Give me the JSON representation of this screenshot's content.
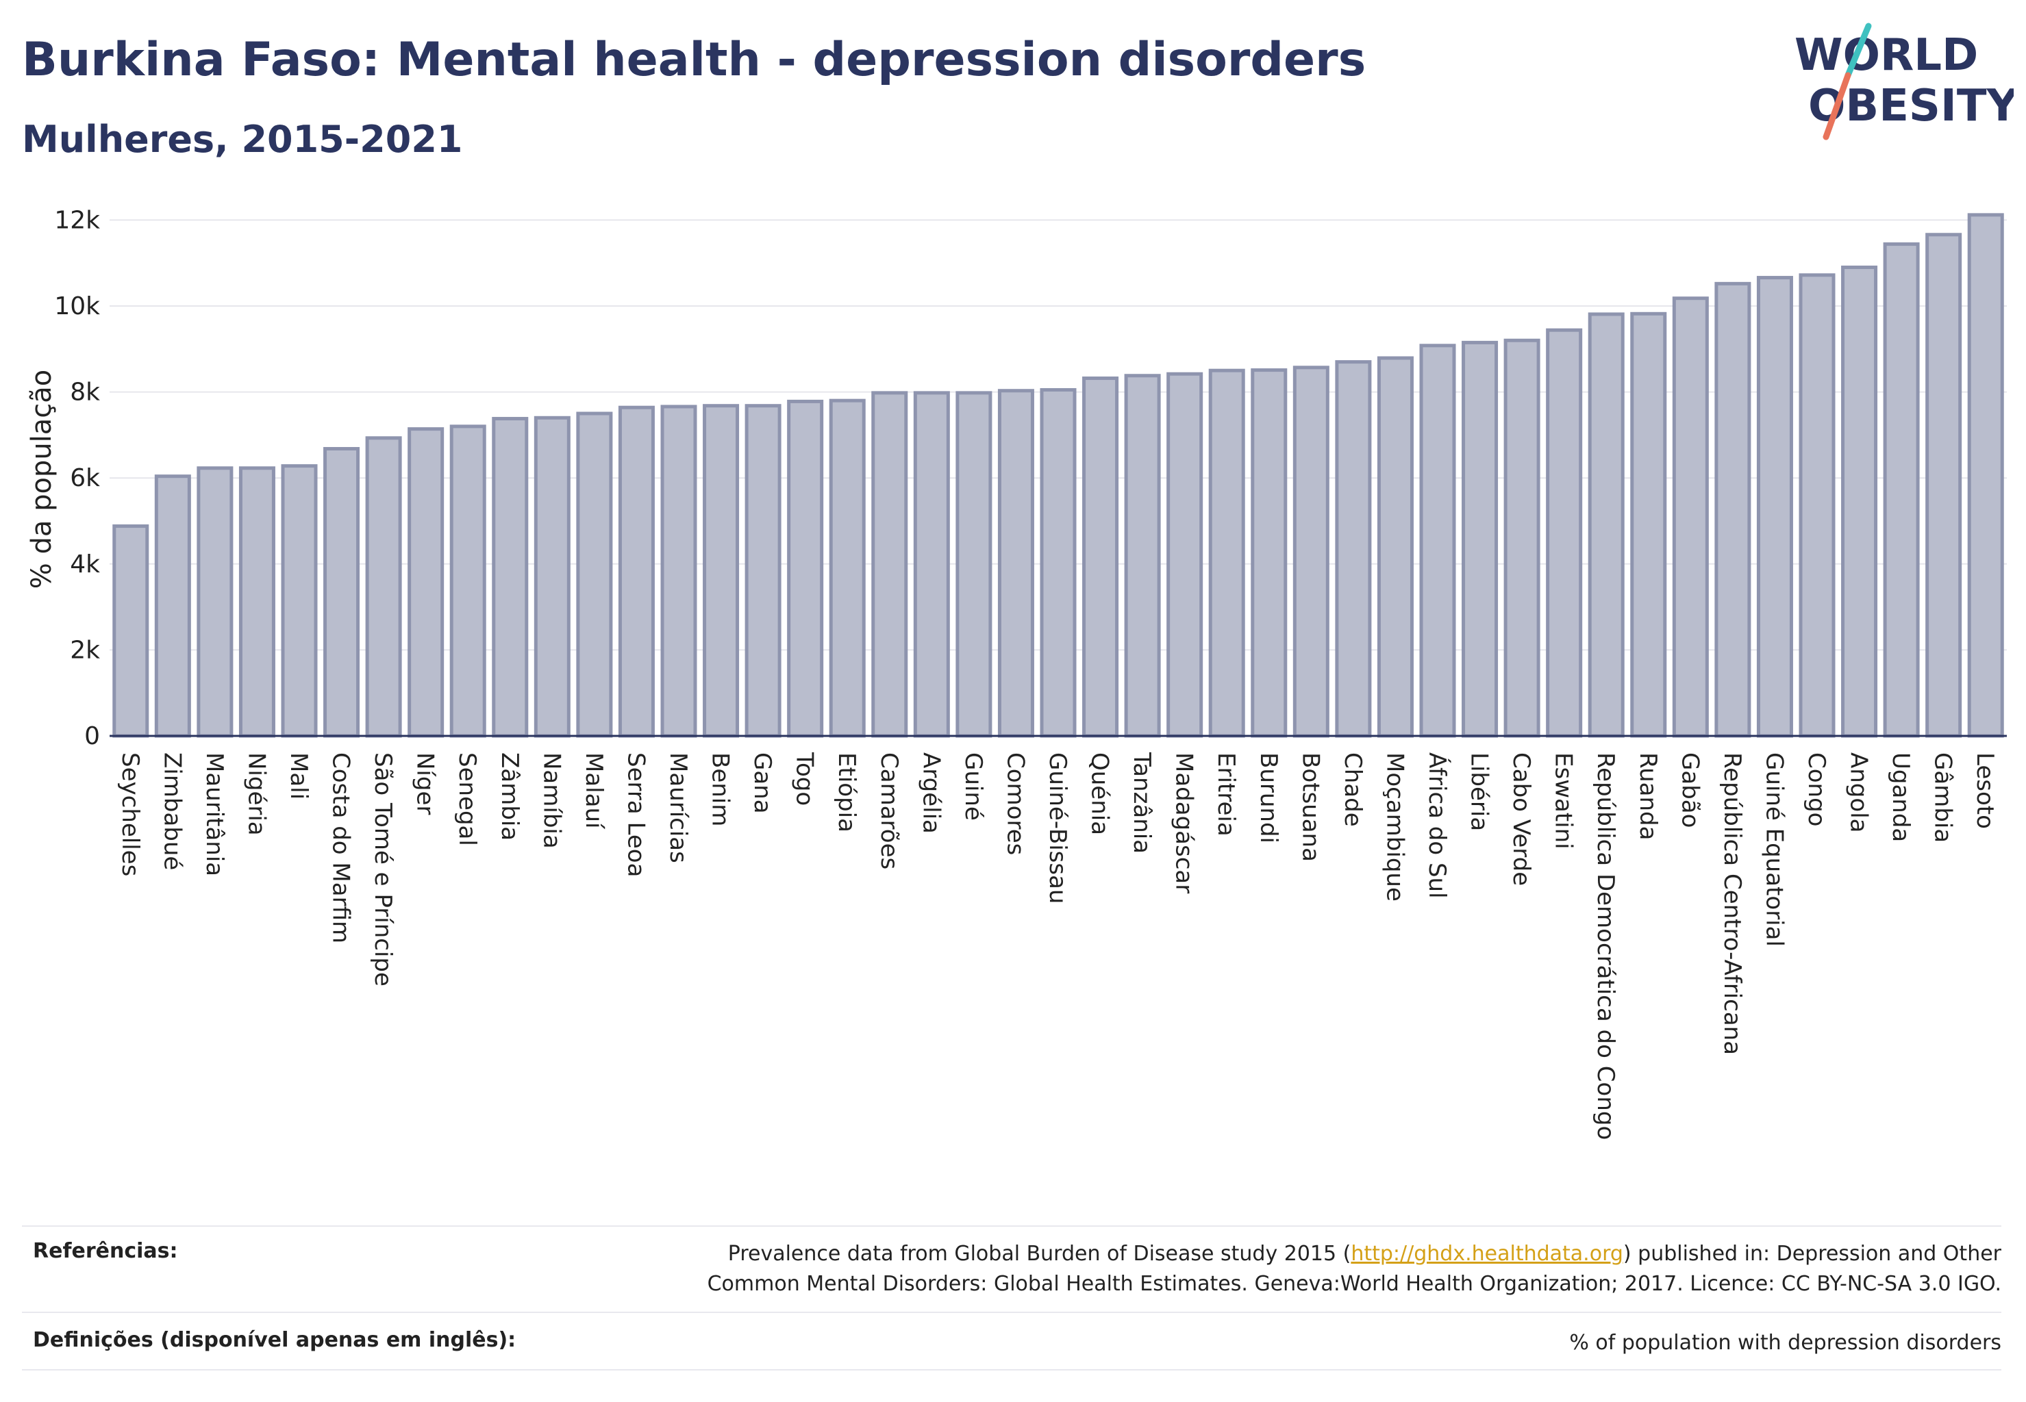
{
  "header": {
    "title": "Burkina Faso: Mental health - depression disorders",
    "subtitle": "Mulheres, 2015-2021"
  },
  "logo": {
    "line1": "WORLD",
    "line2": "OBESITY",
    "accent_teal": "#3fc1c0",
    "accent_coral": "#e8735a",
    "text_color": "#2b3560"
  },
  "chart_data": {
    "type": "bar",
    "ylabel": "% da população",
    "xlabel": "",
    "ylim": [
      0,
      12500
    ],
    "yticks": [
      0,
      2000,
      4000,
      6000,
      8000,
      10000,
      12000
    ],
    "ytick_labels": [
      "0",
      "2k",
      "4k",
      "6k",
      "8k",
      "10k",
      "12k"
    ],
    "grid": true,
    "bar_fill": "#b9bdcd",
    "bar_stroke": "#8e94ae",
    "categories": [
      "Seychelles",
      "Zimbabué",
      "Mauritânia",
      "Nigéria",
      "Mali",
      "Costa do Marfim",
      "São Tomé e Príncipe",
      "Níger",
      "Senegal",
      "Zâmbia",
      "Namíbia",
      "Malauí",
      "Serra Leoa",
      "Maurícias",
      "Benim",
      "Gana",
      "Togo",
      "Etiópia",
      "Camarões",
      "Argélia",
      "Guiné",
      "Comores",
      "Guiné-Bissau",
      "Quénia",
      "Tanzânia",
      "Madagáscar",
      "Eritreia",
      "Burundi",
      "Botsuana",
      "Chade",
      "Moçambique",
      "África do Sul",
      "Libéria",
      "Cabo Verde",
      "Eswatini",
      "República Democrática do Congo",
      "Ruanda",
      "Gabão",
      "República Centro-Africana",
      "Guiné Equatorial",
      "Congo",
      "Angola",
      "Uganda",
      "Gâmbia",
      "Lesoto"
    ],
    "values": [
      4880,
      6040,
      6230,
      6230,
      6280,
      6680,
      6930,
      7140,
      7200,
      7380,
      7400,
      7500,
      7640,
      7660,
      7680,
      7680,
      7780,
      7800,
      7980,
      7980,
      7980,
      8030,
      8050,
      8320,
      8380,
      8420,
      8500,
      8510,
      8570,
      8700,
      8790,
      9080,
      9150,
      9200,
      9440,
      9810,
      9820,
      10180,
      10520,
      10660,
      10720,
      10900,
      11440,
      11660,
      12120
    ]
  },
  "footer": {
    "references_label": "Referências:",
    "references_text_before": "Prevalence data from Global Burden of Disease study 2015 (",
    "references_link": "http://ghdx.healthdata.org",
    "references_text_after": ") published in: Depression and Other Common Mental Disorders: Global Health Estimates. Geneva:World Health Organization; 2017. Licence: CC BY-NC-SA 3.0 IGO.",
    "definitions_label": "Definições (disponível apenas em inglês):",
    "definitions_text": "% of population with depression disorders"
  }
}
